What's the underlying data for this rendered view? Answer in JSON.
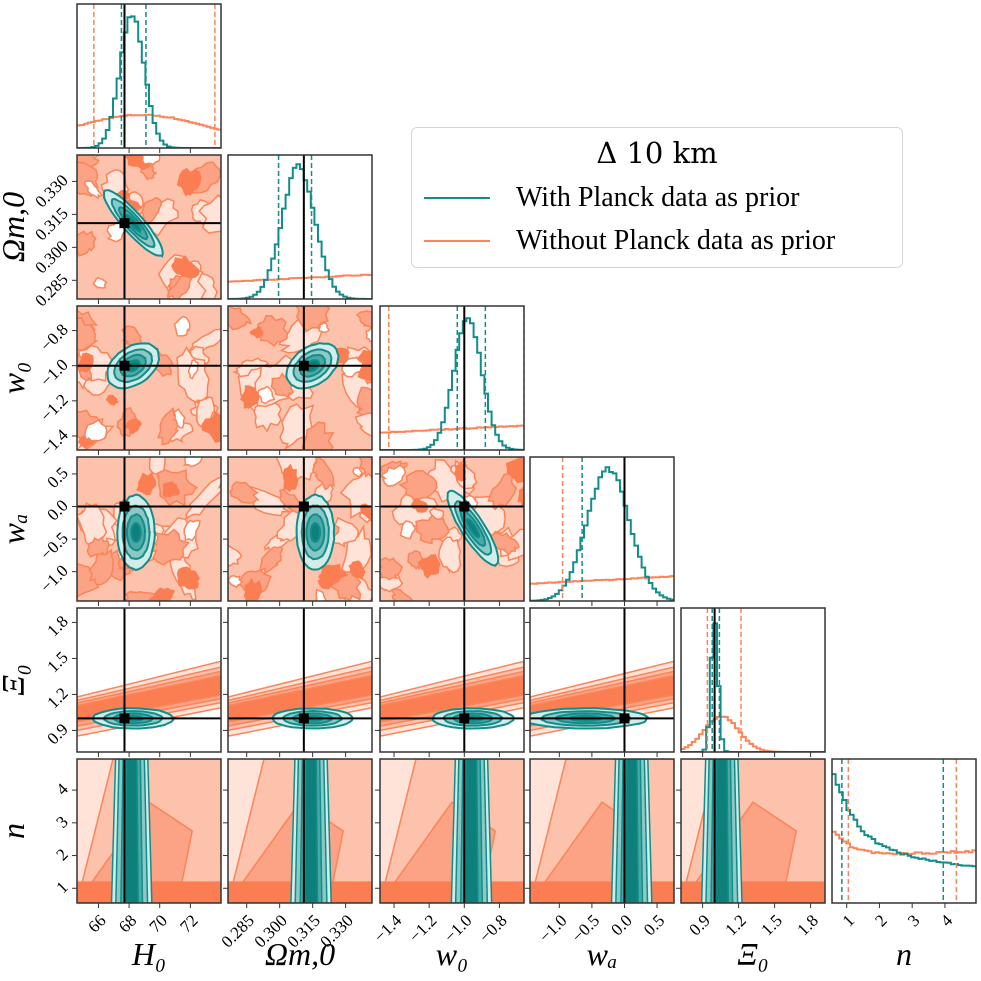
{
  "legend": {
    "title": "Δ 10 km",
    "items": [
      {
        "label": "With Planck data as prior",
        "color": "#138d8a"
      },
      {
        "label": "Without Planck data as prior",
        "color": "#fb8459"
      }
    ]
  },
  "colors": {
    "teal": "#138d8a",
    "teal_fill_1": "#d2ecea",
    "teal_fill_2": "#8cc9c6",
    "teal_fill_3": "#4aa9a5",
    "teal_fill_4": "#0d807c",
    "orange": "#fb8459",
    "orange_fill_1": "#ffe3d9",
    "orange_fill_2": "#fdc2ab",
    "orange_fill_3": "#fca285",
    "orange_fill_4": "#fb7e52",
    "truth": "#000000"
  },
  "chart_data": {
    "type": "corner",
    "title": "",
    "parameters": [
      "H_0",
      "Ω_m,0",
      "w_0",
      "w_a",
      "Ξ_0",
      "n"
    ],
    "axis_labels": [
      "H₀",
      "Ωm,0",
      "w₀",
      "wₐ",
      "Ξ₀",
      "n"
    ],
    "truth_values": {
      "H_0": 67.7,
      "Omega_m0": 0.311,
      "w_0": -1.0,
      "w_a": 0.0,
      "Xi_0": 1.0,
      "n": null
    },
    "ranges": {
      "H_0": [
        64.6,
        74.0
      ],
      "Omega_m0": [
        0.2765,
        0.342
      ],
      "w_0": [
        -1.48,
        -0.66
      ],
      "w_a": [
        -1.45,
        0.76
      ],
      "Xi_0": [
        0.72,
        1.92
      ],
      "n": [
        0.55,
        4.95
      ]
    },
    "ticks": {
      "H_0": [
        "66",
        "68",
        "70",
        "72"
      ],
      "Omega_m0": [
        "0.285",
        "0.300",
        "0.315",
        "0.330"
      ],
      "w_0": [
        "−1.4",
        "−1.2",
        "−1.0",
        "−0.8"
      ],
      "w_a": [
        "−1.0",
        "−0.5",
        "0.0",
        "0.5"
      ],
      "Xi_0": [
        "0.9",
        "1.2",
        "1.5",
        "1.8"
      ],
      "n": [
        "1",
        "2",
        "3",
        "4"
      ]
    },
    "marginals_quantiles": {
      "With Planck data as prior": {
        "H_0": [
          67.5,
          68.2,
          69.1
        ],
        "Omega_m0": [
          0.2995,
          0.3085,
          0.3145
        ],
        "w_0": [
          -1.04,
          -0.98,
          -0.88
        ],
        "w_a": [
          -0.65,
          -0.25,
          0.0
        ],
        "Xi_0": [
          0.98,
          1.0,
          1.04
        ],
        "n": [
          0.85,
          2.0,
          3.95
        ]
      },
      "Without Planck data as prior": {
        "H_0": [
          65.7,
          69.5,
          73.6
        ],
        "Omega_m0": null,
        "w_0": [
          -1.43,
          -1.05,
          -0.66
        ],
        "w_a": [
          -0.95,
          -0.2,
          0.65
        ],
        "Xi_0": [
          0.94,
          1.05,
          1.22
        ],
        "n": [
          1.05,
          2.6,
          4.35
        ]
      }
    },
    "legend_position": "upper right",
    "grid": false
  }
}
